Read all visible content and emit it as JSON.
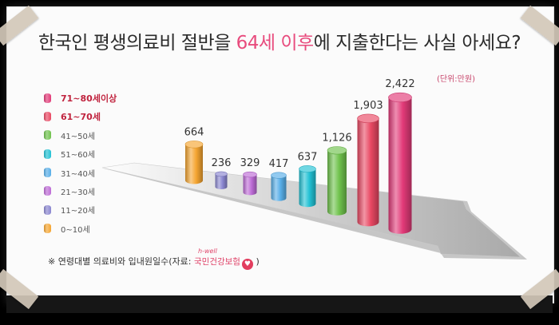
{
  "title": {
    "prefix": "한국인 평생의료비 절반을 ",
    "highlight": "64세 이후",
    "suffix": "에 지출한다는 사실 아세요?"
  },
  "unit_label": "(단위:만원)",
  "source": {
    "prefix": "※  연령대별 의료비와 입내원일수(자료: ",
    "org": "국민건강보험",
    "logo_top": "h-well",
    "suffix": " )"
  },
  "colors": {
    "0~10세": "#f5a531",
    "11~20세": "#8a86d0",
    "21~30세": "#bd6bd6",
    "31~40세": "#57aee8",
    "51~60세": "#22c1d4",
    "41~50세": "#6fc24c",
    "61~70세": "#e94863",
    "71~80세이상": "#e23a78"
  },
  "chart_data": {
    "type": "bar",
    "title": "한국인 평생의료비 절반을 64세 이후에 지출한다는 사실 아세요?",
    "unit": "(단위:만원)",
    "categories": [
      "0~10세",
      "11~20세",
      "21~30세",
      "31~40세",
      "51~60세",
      "41~50세",
      "61~70세",
      "71~80세이상"
    ],
    "values": [
      664,
      236,
      329,
      417,
      637,
      1126,
      1903,
      2422
    ],
    "value_labels": [
      "664",
      "236",
      "329",
      "417",
      "637",
      "1,126",
      "1,903",
      "2,422"
    ],
    "legend": [
      "71~80세이상",
      "61~70세",
      "41~50세",
      "51~60세",
      "31~40세",
      "21~30세",
      "11~20세",
      "0~10세"
    ],
    "legend_placement": "left",
    "grid": false
  }
}
